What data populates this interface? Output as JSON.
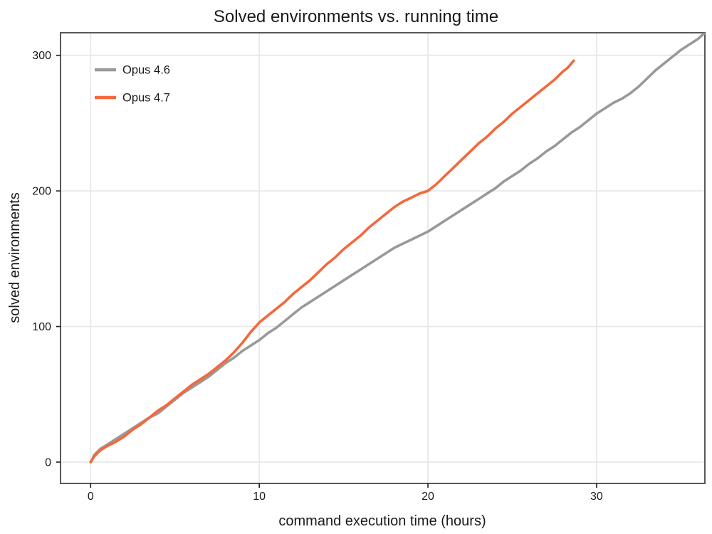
{
  "chart_data": {
    "type": "line",
    "title": "Solved environments vs. running time",
    "xlabel": "command execution time (hours)",
    "ylabel": "solved environments",
    "xlim": [
      -1.785,
      36.42
    ],
    "ylim": [
      -15.75,
      316.65
    ],
    "x_ticks": [
      0,
      10,
      20,
      30
    ],
    "y_ticks": [
      0,
      100,
      200,
      300
    ],
    "grid": true,
    "legend_position": "top-left",
    "styles": {
      "grid_color": "#E8E8E8",
      "border_color": "#58585A",
      "text_color": "#1A1A1A",
      "background": "#FFFFFF"
    },
    "series": [
      {
        "name": "Opus 4.6",
        "color": "#999999",
        "points": [
          [
            0,
            0
          ],
          [
            0.1,
            2
          ],
          [
            0.2,
            5
          ],
          [
            0.35,
            7
          ],
          [
            0.6,
            10
          ],
          [
            1,
            13
          ],
          [
            1.5,
            17
          ],
          [
            2,
            21
          ],
          [
            2.5,
            25
          ],
          [
            3,
            29
          ],
          [
            3.5,
            33
          ],
          [
            4,
            36
          ],
          [
            4.5,
            41
          ],
          [
            5,
            46
          ],
          [
            5.5,
            51
          ],
          [
            6,
            55
          ],
          [
            6.5,
            59
          ],
          [
            7,
            63
          ],
          [
            7.5,
            68
          ],
          [
            8,
            73
          ],
          [
            8.5,
            77
          ],
          [
            9,
            82
          ],
          [
            9.5,
            86
          ],
          [
            10,
            90
          ],
          [
            10.5,
            95
          ],
          [
            11,
            99
          ],
          [
            11.5,
            104
          ],
          [
            12,
            109
          ],
          [
            12.5,
            114
          ],
          [
            13,
            118
          ],
          [
            13.5,
            122
          ],
          [
            14,
            126
          ],
          [
            14.5,
            130
          ],
          [
            15,
            134
          ],
          [
            15.5,
            138
          ],
          [
            16,
            142
          ],
          [
            16.5,
            146
          ],
          [
            17,
            150
          ],
          [
            17.5,
            154
          ],
          [
            18,
            158
          ],
          [
            18.5,
            161
          ],
          [
            19,
            164
          ],
          [
            19.5,
            167
          ],
          [
            20,
            170
          ],
          [
            20.5,
            174
          ],
          [
            21,
            178
          ],
          [
            21.5,
            182
          ],
          [
            22,
            186
          ],
          [
            22.5,
            190
          ],
          [
            23,
            194
          ],
          [
            23.5,
            198
          ],
          [
            24,
            202
          ],
          [
            24.5,
            207
          ],
          [
            25,
            211
          ],
          [
            25.5,
            215
          ],
          [
            26,
            220
          ],
          [
            26.5,
            224
          ],
          [
            27,
            229
          ],
          [
            27.5,
            233
          ],
          [
            28,
            238
          ],
          [
            28.5,
            243
          ],
          [
            29,
            247
          ],
          [
            29.5,
            252
          ],
          [
            30,
            257
          ],
          [
            30.5,
            261
          ],
          [
            31,
            265
          ],
          [
            31.5,
            268
          ],
          [
            32,
            272
          ],
          [
            32.5,
            277
          ],
          [
            33,
            283
          ],
          [
            33.5,
            289
          ],
          [
            34,
            294
          ],
          [
            34.5,
            299
          ],
          [
            35,
            304
          ],
          [
            35.5,
            308
          ],
          [
            36,
            312
          ],
          [
            36.45,
            317
          ]
        ]
      },
      {
        "name": "Opus 4.7",
        "color": "#F4683D",
        "points": [
          [
            0,
            0
          ],
          [
            0.1,
            2
          ],
          [
            0.2,
            4
          ],
          [
            0.35,
            6
          ],
          [
            0.6,
            9
          ],
          [
            1,
            12
          ],
          [
            1.5,
            15
          ],
          [
            2,
            19
          ],
          [
            2.5,
            24
          ],
          [
            3,
            28
          ],
          [
            3.5,
            33
          ],
          [
            4,
            38
          ],
          [
            4.5,
            42
          ],
          [
            5,
            47
          ],
          [
            5.5,
            52
          ],
          [
            6,
            57
          ],
          [
            6.5,
            61
          ],
          [
            7,
            65
          ],
          [
            7.5,
            70
          ],
          [
            8,
            75
          ],
          [
            8.5,
            81
          ],
          [
            9,
            88
          ],
          [
            9.5,
            96
          ],
          [
            10,
            103
          ],
          [
            10.5,
            108
          ],
          [
            11,
            113
          ],
          [
            11.5,
            118
          ],
          [
            12,
            124
          ],
          [
            12.5,
            129
          ],
          [
            13,
            134
          ],
          [
            13.5,
            140
          ],
          [
            14,
            146
          ],
          [
            14.5,
            151
          ],
          [
            15,
            157
          ],
          [
            15.5,
            162
          ],
          [
            16,
            167
          ],
          [
            16.5,
            173
          ],
          [
            17,
            178
          ],
          [
            17.5,
            183
          ],
          [
            18,
            188
          ],
          [
            18.5,
            192
          ],
          [
            19,
            195
          ],
          [
            19.5,
            198
          ],
          [
            20,
            200
          ],
          [
            20.5,
            205
          ],
          [
            21,
            211
          ],
          [
            21.5,
            217
          ],
          [
            22,
            223
          ],
          [
            22.5,
            229
          ],
          [
            23,
            235
          ],
          [
            23.5,
            240
          ],
          [
            24,
            246
          ],
          [
            24.5,
            251
          ],
          [
            25,
            257
          ],
          [
            25.5,
            262
          ],
          [
            26,
            267
          ],
          [
            26.5,
            272
          ],
          [
            27,
            277
          ],
          [
            27.5,
            282
          ],
          [
            28,
            288
          ],
          [
            28.3,
            291
          ],
          [
            28.5,
            294
          ],
          [
            28.65,
            296
          ]
        ]
      }
    ]
  }
}
